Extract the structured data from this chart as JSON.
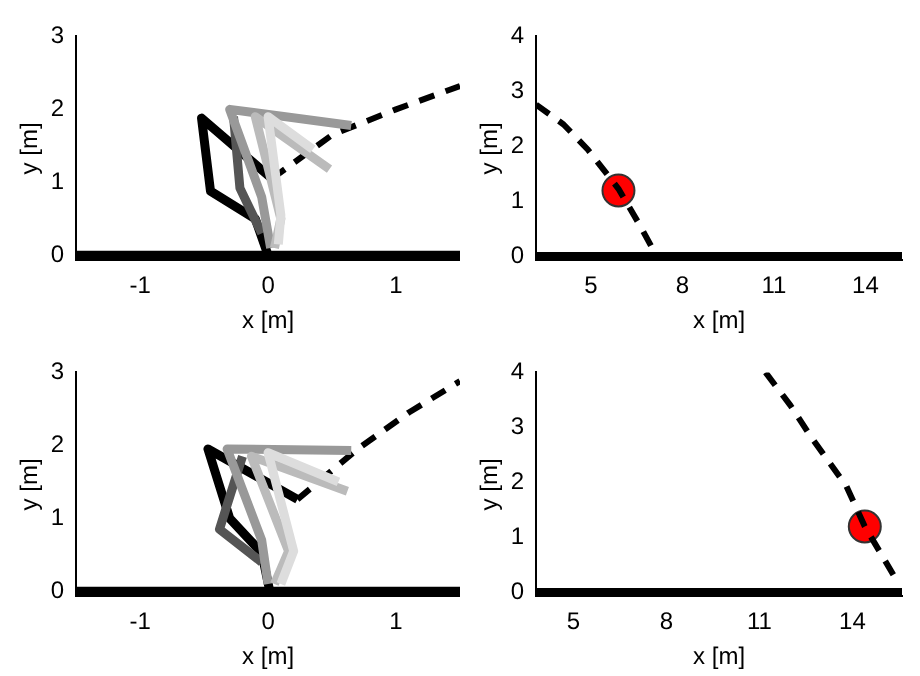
{
  "chart_data": [
    {
      "type": "line",
      "xlabel": "x [m]",
      "ylabel": "y [m]",
      "xlim": [
        -1.5,
        1.5
      ],
      "ylim": [
        -0.07,
        3
      ],
      "xticks": [
        -1,
        0,
        1
      ],
      "yticks": [
        0,
        1,
        2,
        3
      ],
      "grid": false,
      "legend": false,
      "series": [
        {
          "color": "#dddddd",
          "x": [
            0.08,
            0.1,
            0.0,
            0.35
          ],
          "values": [
            0.15,
            0.55,
            1.9,
            1.45
          ]
        },
        {
          "color": "#bbbbbb",
          "x": [
            0.05,
            0.1,
            -0.1,
            0.48
          ],
          "values": [
            0.1,
            0.5,
            1.9,
            1.18
          ]
        },
        {
          "color": "#999999",
          "x": [
            0.02,
            -0.05,
            -0.3,
            0.65
          ],
          "values": [
            0.1,
            0.8,
            2.0,
            1.78
          ]
        },
        {
          "color": "#555555",
          "x": [
            -0.05,
            -0.22,
            -0.27
          ],
          "values": [
            0.3,
            0.92,
            1.9
          ]
        },
        {
          "color": "#000000",
          "x": [
            0.0,
            -0.1,
            -0.45,
            -0.52,
            0.03
          ],
          "values": [
            0.0,
            0.5,
            0.88,
            1.88,
            1.05
          ]
        },
        {
          "color": "#000000",
          "line_style": "dashed",
          "x": [
            0.03,
            0.5,
            1.0,
            1.5
          ],
          "values": [
            1.05,
            1.65,
            2.0,
            2.32
          ]
        },
        {
          "color": "#000000",
          "x": [
            -1.5,
            1.5
          ],
          "values": [
            0,
            0
          ]
        }
      ]
    },
    {
      "type": "line",
      "xlabel": "x [m]",
      "ylabel": "y [m]",
      "xlim": [
        3.2,
        15.2
      ],
      "ylim": [
        -0.07,
        4
      ],
      "xticks": [
        5,
        8,
        11,
        14
      ],
      "yticks": [
        0,
        1,
        2,
        3,
        4
      ],
      "grid": false,
      "legend": false,
      "series": [
        {
          "color": "#000000",
          "line_style": "dashed",
          "x": [
            3.2,
            4.1,
            4.9,
            5.9,
            6.6,
            7.1
          ],
          "values": [
            2.76,
            2.4,
            1.94,
            1.23,
            0.57,
            0.06
          ]
        },
        {
          "color": "#000000",
          "x": [
            3.2,
            15.2
          ],
          "values": [
            0,
            0
          ]
        },
        {
          "type": "scatter",
          "marker": "circle",
          "color": "#ff0000",
          "x": [
            5.9
          ],
          "values": [
            1.2
          ]
        }
      ]
    },
    {
      "type": "line",
      "xlabel": "x [m]",
      "ylabel": "y [m]",
      "xlim": [
        -1.5,
        1.5
      ],
      "ylim": [
        -0.07,
        3
      ],
      "xticks": [
        -1,
        0,
        1
      ],
      "yticks": [
        0,
        1,
        2,
        3
      ],
      "grid": false,
      "legend": false,
      "series": [
        {
          "color": "#dddddd",
          "x": [
            0.1,
            0.2,
            0.0,
            0.55
          ],
          "values": [
            0.1,
            0.55,
            1.9,
            1.5
          ]
        },
        {
          "color": "#bbbbbb",
          "x": [
            0.05,
            0.16,
            -0.13,
            0.62
          ],
          "values": [
            0.1,
            0.55,
            1.85,
            1.37
          ]
        },
        {
          "color": "#999999",
          "x": [
            0.0,
            -0.05,
            -0.32,
            0.65
          ],
          "values": [
            0.1,
            0.7,
            1.95,
            1.93
          ]
        },
        {
          "color": "#555555",
          "x": [
            -0.05,
            -0.38,
            -0.2
          ],
          "values": [
            0.4,
            0.85,
            1.85
          ]
        },
        {
          "color": "#000000",
          "x": [
            0.01,
            -0.05,
            -0.3,
            -0.47,
            0.23
          ],
          "values": [
            0.03,
            0.53,
            1.0,
            1.95,
            1.26
          ]
        },
        {
          "color": "#000000",
          "line_style": "dashed",
          "x": [
            0.23,
            0.7,
            1.1,
            1.5
          ],
          "values": [
            1.26,
            1.95,
            2.45,
            2.88
          ]
        },
        {
          "color": "#000000",
          "x": [
            -1.5,
            1.5
          ],
          "values": [
            0,
            0
          ]
        }
      ]
    },
    {
      "type": "line",
      "xlabel": "x [m]",
      "ylabel": "y [m]",
      "xlim": [
        3.8,
        15.6
      ],
      "ylim": [
        -0.07,
        4
      ],
      "xticks": [
        5,
        8,
        11,
        14
      ],
      "yticks": [
        0,
        1,
        2,
        3,
        4
      ],
      "grid": false,
      "legend": false,
      "series": [
        {
          "color": "#000000",
          "line_style": "dashed",
          "x": [
            11.2,
            12.0,
            12.7,
            13.8,
            14.4,
            15.0,
            15.5
          ],
          "values": [
            4.0,
            3.4,
            2.8,
            1.94,
            1.2,
            0.63,
            0.15
          ]
        },
        {
          "color": "#000000",
          "x": [
            3.8,
            15.6
          ],
          "values": [
            0,
            0
          ]
        },
        {
          "type": "scatter",
          "marker": "circle",
          "color": "#ff0000",
          "x": [
            14.4
          ],
          "values": [
            1.2
          ]
        }
      ]
    }
  ]
}
